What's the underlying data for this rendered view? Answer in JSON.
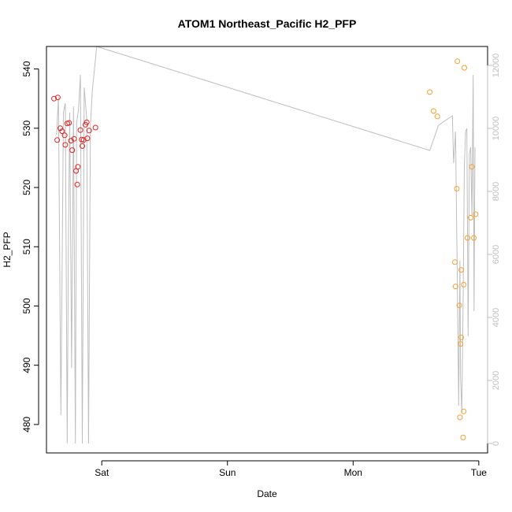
{
  "chart_data": {
    "type": "scatter",
    "title": "ATOM1 Northeast_Pacific H2_PFP",
    "xlabel": "Date",
    "ylabel": "H2_PFP",
    "x_ticks": [
      "Sat",
      "Sun",
      "Mon",
      "Tue"
    ],
    "x_tick_days": [
      1,
      2,
      3,
      4
    ],
    "xlim": [
      0.56,
      4.07
    ],
    "ylim": [
      475.2,
      543.8
    ],
    "y_ticks": [
      480,
      490,
      500,
      510,
      520,
      530,
      540
    ],
    "y2lim": [
      -300,
      12600
    ],
    "y2_ticks": [
      0,
      2000,
      4000,
      6000,
      8000,
      10000,
      12000
    ],
    "grid": false,
    "legend": "none",
    "colors": {
      "series_a": "#dd2222",
      "series_b": "#f5a030",
      "altitude": "#bebebe",
      "axis": "#000000"
    },
    "series": [
      {
        "color": "#dd2222",
        "points": [
          {
            "x": 0.62,
            "y": 535.0
          },
          {
            "x": 0.65,
            "y": 535.2
          },
          {
            "x": 0.645,
            "y": 528.0
          },
          {
            "x": 0.67,
            "y": 530.0
          },
          {
            "x": 0.685,
            "y": 529.5
          },
          {
            "x": 0.705,
            "y": 528.8
          },
          {
            "x": 0.71,
            "y": 527.2
          },
          {
            "x": 0.725,
            "y": 530.8
          },
          {
            "x": 0.74,
            "y": 530.9
          },
          {
            "x": 0.755,
            "y": 527.9
          },
          {
            "x": 0.765,
            "y": 526.3
          },
          {
            "x": 0.78,
            "y": 528.2
          },
          {
            "x": 0.795,
            "y": 522.8
          },
          {
            "x": 0.805,
            "y": 520.5
          },
          {
            "x": 0.81,
            "y": 523.5
          },
          {
            "x": 0.83,
            "y": 529.7
          },
          {
            "x": 0.84,
            "y": 528.1
          },
          {
            "x": 0.845,
            "y": 527.0
          },
          {
            "x": 0.855,
            "y": 528.0
          },
          {
            "x": 0.87,
            "y": 530.6
          },
          {
            "x": 0.88,
            "y": 531.0
          },
          {
            "x": 0.885,
            "y": 528.3
          },
          {
            "x": 0.9,
            "y": 529.6
          },
          {
            "x": 0.95,
            "y": 530.1
          }
        ]
      },
      {
        "color": "#f5a030",
        "points": [
          {
            "x": 3.61,
            "y": 536.1
          },
          {
            "x": 3.64,
            "y": 532.9
          },
          {
            "x": 3.67,
            "y": 532.0
          },
          {
            "x": 3.81,
            "y": 507.4
          },
          {
            "x": 3.815,
            "y": 503.3
          },
          {
            "x": 3.825,
            "y": 519.8
          },
          {
            "x": 3.83,
            "y": 541.3
          },
          {
            "x": 3.845,
            "y": 500.1
          },
          {
            "x": 3.85,
            "y": 481.2
          },
          {
            "x": 3.855,
            "y": 493.6
          },
          {
            "x": 3.86,
            "y": 494.7
          },
          {
            "x": 3.86,
            "y": 506.1
          },
          {
            "x": 3.875,
            "y": 477.8
          },
          {
            "x": 3.88,
            "y": 482.2
          },
          {
            "x": 3.88,
            "y": 503.6
          },
          {
            "x": 3.885,
            "y": 540.2
          },
          {
            "x": 3.91,
            "y": 511.5
          },
          {
            "x": 3.935,
            "y": 514.9
          },
          {
            "x": 3.945,
            "y": 523.5
          },
          {
            "x": 3.96,
            "y": 511.5
          },
          {
            "x": 3.975,
            "y": 515.5
          }
        ]
      }
    ],
    "altitude_line": {
      "color": "#bebebe",
      "points": [
        {
          "x": 0.64,
          "y2": 9800
        },
        {
          "x": 0.655,
          "y2": 11000
        },
        {
          "x": 0.675,
          "y2": 900
        },
        {
          "x": 0.695,
          "y2": 10500
        },
        {
          "x": 0.71,
          "y2": 10800
        },
        {
          "x": 0.725,
          "y2": 0
        },
        {
          "x": 0.735,
          "y2": 6500
        },
        {
          "x": 0.745,
          "y2": 10500
        },
        {
          "x": 0.76,
          "y2": 2400
        },
        {
          "x": 0.775,
          "y2": 10700
        },
        {
          "x": 0.79,
          "y2": 0
        },
        {
          "x": 0.8,
          "y2": 10200
        },
        {
          "x": 0.815,
          "y2": 10600
        },
        {
          "x": 0.83,
          "y2": 11700
        },
        {
          "x": 0.845,
          "y2": 0
        },
        {
          "x": 0.86,
          "y2": 11300
        },
        {
          "x": 0.88,
          "y2": 10300
        },
        {
          "x": 0.895,
          "y2": 0
        },
        {
          "x": 0.91,
          "y2": 10100
        },
        {
          "x": 0.925,
          "y2": 11200
        },
        {
          "x": 0.96,
          "y2": 12600
        },
        {
          "x": 3.61,
          "y2": 9300
        },
        {
          "x": 3.68,
          "y2": 10100
        },
        {
          "x": 3.79,
          "y2": 10400
        },
        {
          "x": 3.8,
          "y2": 8900
        },
        {
          "x": 3.815,
          "y2": 9900
        },
        {
          "x": 3.83,
          "y2": 4900
        },
        {
          "x": 3.84,
          "y2": 1200
        },
        {
          "x": 3.85,
          "y2": 5800
        },
        {
          "x": 3.855,
          "y2": 2100
        },
        {
          "x": 3.865,
          "y2": 1000
        },
        {
          "x": 3.875,
          "y2": 4400
        },
        {
          "x": 3.885,
          "y2": 8800
        },
        {
          "x": 3.895,
          "y2": 9900
        },
        {
          "x": 3.905,
          "y2": 10000
        },
        {
          "x": 3.915,
          "y2": 3400
        },
        {
          "x": 3.925,
          "y2": 9200
        },
        {
          "x": 3.935,
          "y2": 9400
        },
        {
          "x": 3.945,
          "y2": 7200
        },
        {
          "x": 3.955,
          "y2": 11700
        },
        {
          "x": 3.962,
          "y2": 4200
        },
        {
          "x": 3.97,
          "y2": 9400
        }
      ]
    }
  }
}
